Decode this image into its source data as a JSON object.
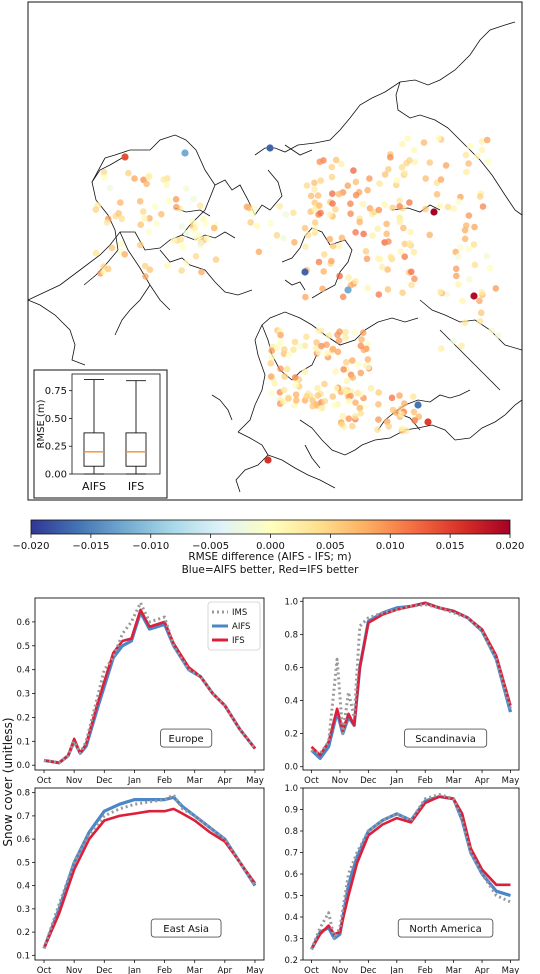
{
  "map": {
    "inset_chart": {
      "type": "box",
      "ylabel": "RMSE (m)",
      "yticks": [
        "0.00",
        "0.25",
        "0.50",
        "0.75"
      ],
      "ylim": [
        0,
        0.9
      ],
      "boxes": [
        {
          "label": "AIFS",
          "min": 0.0,
          "q1": 0.07,
          "median": 0.2,
          "q3": 0.37,
          "max": 0.85
        },
        {
          "label": "IFS",
          "min": 0.0,
          "q1": 0.07,
          "median": 0.2,
          "q3": 0.37,
          "max": 0.84
        }
      ],
      "median_color": "#f28e2b"
    },
    "colorbar": {
      "range": [
        -0.02,
        0.02
      ],
      "ticks": [
        "−0.020",
        "−0.015",
        "−0.010",
        "−0.005",
        "0.000",
        "0.005",
        "0.010",
        "0.015",
        "0.020"
      ],
      "label": "RMSE difference (AIFS - IFS; m)",
      "sublabel": "Blue=AIFS better, Red=IFS better",
      "colors": [
        "#313695",
        "#4575b4",
        "#74add1",
        "#abd9e9",
        "#e0f3f8",
        "#ffffbf",
        "#fee090",
        "#fdae61",
        "#f46d43",
        "#d73027",
        "#a50026"
      ]
    }
  },
  "chart_data": [
    {
      "type": "line",
      "region": "Europe",
      "ylabel": "Snow cover (unitless)",
      "ylim": [
        -0.02,
        0.7
      ],
      "yticks": [
        "0.0",
        "0.1",
        "0.2",
        "0.3",
        "0.4",
        "0.5",
        "0.6"
      ],
      "categories": [
        "Oct",
        "Nov",
        "Dec",
        "Jan",
        "Feb",
        "Mar",
        "Apr",
        "May"
      ],
      "series": [
        {
          "name": "IMS",
          "color": "#999999",
          "style": "dotted",
          "points": [
            [
              0,
              0.02
            ],
            [
              0.5,
              0.01
            ],
            [
              0.8,
              0.04
            ],
            [
              1.0,
              0.1
            ],
            [
              1.2,
              0.05
            ],
            [
              1.4,
              0.1
            ],
            [
              1.8,
              0.3
            ],
            [
              2.0,
              0.4
            ],
            [
              2.3,
              0.45
            ],
            [
              2.6,
              0.55
            ],
            [
              2.9,
              0.6
            ],
            [
              3.2,
              0.68
            ],
            [
              3.5,
              0.6
            ],
            [
              4.0,
              0.62
            ],
            [
              4.3,
              0.5
            ],
            [
              4.8,
              0.4
            ],
            [
              5.2,
              0.37
            ],
            [
              5.6,
              0.3
            ],
            [
              6.0,
              0.25
            ],
            [
              6.5,
              0.15
            ],
            [
              7.0,
              0.07
            ]
          ]
        },
        {
          "name": "AIFS",
          "color": "#4a86c8",
          "style": "solid",
          "points": [
            [
              0,
              0.02
            ],
            [
              0.5,
              0.01
            ],
            [
              0.8,
              0.04
            ],
            [
              1.0,
              0.1
            ],
            [
              1.2,
              0.05
            ],
            [
              1.4,
              0.08
            ],
            [
              1.8,
              0.25
            ],
            [
              2.0,
              0.33
            ],
            [
              2.3,
              0.45
            ],
            [
              2.6,
              0.5
            ],
            [
              2.9,
              0.52
            ],
            [
              3.2,
              0.64
            ],
            [
              3.5,
              0.57
            ],
            [
              4.0,
              0.59
            ],
            [
              4.3,
              0.5
            ],
            [
              4.8,
              0.4
            ],
            [
              5.2,
              0.37
            ],
            [
              5.6,
              0.3
            ],
            [
              6.0,
              0.25
            ],
            [
              6.5,
              0.15
            ],
            [
              7.0,
              0.07
            ]
          ]
        },
        {
          "name": "IFS",
          "color": "#dc1f3a",
          "style": "solid",
          "points": [
            [
              0,
              0.02
            ],
            [
              0.5,
              0.01
            ],
            [
              0.8,
              0.04
            ],
            [
              1.0,
              0.11
            ],
            [
              1.2,
              0.05
            ],
            [
              1.4,
              0.09
            ],
            [
              1.8,
              0.27
            ],
            [
              2.0,
              0.35
            ],
            [
              2.3,
              0.47
            ],
            [
              2.6,
              0.52
            ],
            [
              2.9,
              0.53
            ],
            [
              3.2,
              0.65
            ],
            [
              3.5,
              0.58
            ],
            [
              4.0,
              0.6
            ],
            [
              4.3,
              0.51
            ],
            [
              4.8,
              0.41
            ],
            [
              5.2,
              0.37
            ],
            [
              5.6,
              0.3
            ],
            [
              6.0,
              0.25
            ],
            [
              6.5,
              0.15
            ],
            [
              7.0,
              0.07
            ]
          ]
        }
      ]
    },
    {
      "type": "line",
      "region": "Scandinavia",
      "ylim": [
        -0.02,
        1.02
      ],
      "yticks": [
        "0.0",
        "0.2",
        "0.4",
        "0.6",
        "0.8",
        "1.0"
      ],
      "categories": [
        "Oct",
        "Nov",
        "Dec",
        "Jan",
        "Feb",
        "Mar",
        "Apr",
        "May"
      ],
      "series": [
        {
          "name": "IMS",
          "color": "#999999",
          "style": "dotted",
          "points": [
            [
              0,
              0.1
            ],
            [
              0.3,
              0.08
            ],
            [
              0.6,
              0.15
            ],
            [
              0.9,
              0.65
            ],
            [
              1.1,
              0.2
            ],
            [
              1.3,
              0.45
            ],
            [
              1.5,
              0.3
            ],
            [
              1.7,
              0.85
            ],
            [
              2.0,
              0.9
            ],
            [
              2.5,
              0.93
            ],
            [
              3.0,
              0.95
            ],
            [
              3.5,
              0.97
            ],
            [
              4.0,
              0.98
            ],
            [
              4.5,
              0.96
            ],
            [
              5.0,
              0.93
            ],
            [
              5.5,
              0.9
            ],
            [
              6.0,
              0.82
            ],
            [
              6.5,
              0.65
            ],
            [
              7.0,
              0.35
            ]
          ]
        },
        {
          "name": "AIFS",
          "color": "#4a86c8",
          "style": "solid",
          "points": [
            [
              0,
              0.1
            ],
            [
              0.3,
              0.05
            ],
            [
              0.6,
              0.12
            ],
            [
              0.9,
              0.33
            ],
            [
              1.1,
              0.2
            ],
            [
              1.3,
              0.3
            ],
            [
              1.5,
              0.25
            ],
            [
              1.7,
              0.6
            ],
            [
              2.0,
              0.88
            ],
            [
              2.5,
              0.93
            ],
            [
              3.0,
              0.96
            ],
            [
              3.5,
              0.97
            ],
            [
              4.0,
              0.99
            ],
            [
              4.5,
              0.96
            ],
            [
              5.0,
              0.94
            ],
            [
              5.5,
              0.9
            ],
            [
              6.0,
              0.82
            ],
            [
              6.5,
              0.65
            ],
            [
              7.0,
              0.33
            ]
          ]
        },
        {
          "name": "IFS",
          "color": "#dc1f3a",
          "style": "solid",
          "points": [
            [
              0,
              0.12
            ],
            [
              0.3,
              0.07
            ],
            [
              0.6,
              0.15
            ],
            [
              0.9,
              0.35
            ],
            [
              1.1,
              0.22
            ],
            [
              1.3,
              0.32
            ],
            [
              1.5,
              0.25
            ],
            [
              1.7,
              0.6
            ],
            [
              2.0,
              0.87
            ],
            [
              2.5,
              0.92
            ],
            [
              3.0,
              0.95
            ],
            [
              3.5,
              0.97
            ],
            [
              4.0,
              0.99
            ],
            [
              4.5,
              0.96
            ],
            [
              5.0,
              0.94
            ],
            [
              5.5,
              0.9
            ],
            [
              6.0,
              0.83
            ],
            [
              6.5,
              0.67
            ],
            [
              7.0,
              0.37
            ]
          ]
        }
      ]
    },
    {
      "type": "line",
      "region": "East Asia",
      "ylim": [
        0.08,
        0.82
      ],
      "yticks": [
        "0.1",
        "0.2",
        "0.3",
        "0.4",
        "0.5",
        "0.6",
        "0.7",
        "0.8"
      ],
      "categories": [
        "Oct",
        "Nov",
        "Dec",
        "Jan",
        "Feb",
        "Mar",
        "Apr",
        "May"
      ],
      "series": [
        {
          "name": "IMS",
          "color": "#999999",
          "style": "dotted",
          "points": [
            [
              0,
              0.13
            ],
            [
              0.5,
              0.32
            ],
            [
              1.0,
              0.5
            ],
            [
              1.5,
              0.62
            ],
            [
              2.0,
              0.7
            ],
            [
              2.5,
              0.73
            ],
            [
              3.0,
              0.75
            ],
            [
              3.5,
              0.76
            ],
            [
              4.0,
              0.77
            ],
            [
              4.3,
              0.79
            ],
            [
              4.6,
              0.73
            ],
            [
              5.0,
              0.7
            ],
            [
              5.5,
              0.65
            ],
            [
              6.0,
              0.6
            ],
            [
              6.5,
              0.5
            ],
            [
              7.0,
              0.4
            ]
          ]
        },
        {
          "name": "AIFS",
          "color": "#4a86c8",
          "style": "solid",
          "points": [
            [
              0,
              0.13
            ],
            [
              0.5,
              0.3
            ],
            [
              1.0,
              0.5
            ],
            [
              1.5,
              0.63
            ],
            [
              2.0,
              0.72
            ],
            [
              2.5,
              0.75
            ],
            [
              3.0,
              0.77
            ],
            [
              3.5,
              0.77
            ],
            [
              4.0,
              0.77
            ],
            [
              4.3,
              0.78
            ],
            [
              4.6,
              0.74
            ],
            [
              5.0,
              0.7
            ],
            [
              5.5,
              0.65
            ],
            [
              6.0,
              0.6
            ],
            [
              6.5,
              0.5
            ],
            [
              7.0,
              0.4
            ]
          ]
        },
        {
          "name": "IFS",
          "color": "#dc1f3a",
          "style": "solid",
          "points": [
            [
              0,
              0.13
            ],
            [
              0.5,
              0.28
            ],
            [
              1.0,
              0.47
            ],
            [
              1.5,
              0.6
            ],
            [
              2.0,
              0.68
            ],
            [
              2.5,
              0.7
            ],
            [
              3.0,
              0.71
            ],
            [
              3.5,
              0.72
            ],
            [
              4.0,
              0.72
            ],
            [
              4.3,
              0.73
            ],
            [
              4.6,
              0.71
            ],
            [
              5.0,
              0.68
            ],
            [
              5.5,
              0.63
            ],
            [
              6.0,
              0.59
            ],
            [
              6.5,
              0.5
            ],
            [
              7.0,
              0.41
            ]
          ]
        }
      ]
    },
    {
      "type": "line",
      "region": "North America",
      "ylim": [
        0.2,
        1.0
      ],
      "yticks": [
        "0.2",
        "0.3",
        "0.4",
        "0.5",
        "0.6",
        "0.7",
        "0.8",
        "0.9",
        "1.0"
      ],
      "categories": [
        "Oct",
        "Nov",
        "Dec",
        "Jan",
        "Feb",
        "Mar",
        "Apr",
        "May"
      ],
      "series": [
        {
          "name": "IMS",
          "color": "#999999",
          "style": "dotted",
          "points": [
            [
              0,
              0.25
            ],
            [
              0.3,
              0.35
            ],
            [
              0.6,
              0.42
            ],
            [
              0.8,
              0.3
            ],
            [
              1.0,
              0.35
            ],
            [
              1.3,
              0.6
            ],
            [
              1.6,
              0.7
            ],
            [
              2.0,
              0.8
            ],
            [
              2.5,
              0.85
            ],
            [
              3.0,
              0.88
            ],
            [
              3.5,
              0.85
            ],
            [
              4.0,
              0.95
            ],
            [
              4.5,
              0.97
            ],
            [
              5.0,
              0.95
            ],
            [
              5.3,
              0.85
            ],
            [
              5.6,
              0.7
            ],
            [
              6.0,
              0.6
            ],
            [
              6.5,
              0.5
            ],
            [
              7.0,
              0.47
            ]
          ]
        },
        {
          "name": "AIFS",
          "color": "#4a86c8",
          "style": "solid",
          "points": [
            [
              0,
              0.25
            ],
            [
              0.3,
              0.33
            ],
            [
              0.6,
              0.35
            ],
            [
              0.8,
              0.3
            ],
            [
              1.0,
              0.32
            ],
            [
              1.3,
              0.55
            ],
            [
              1.6,
              0.68
            ],
            [
              2.0,
              0.8
            ],
            [
              2.5,
              0.85
            ],
            [
              3.0,
              0.88
            ],
            [
              3.5,
              0.85
            ],
            [
              4.0,
              0.94
            ],
            [
              4.5,
              0.96
            ],
            [
              5.0,
              0.95
            ],
            [
              5.3,
              0.85
            ],
            [
              5.6,
              0.7
            ],
            [
              6.0,
              0.6
            ],
            [
              6.5,
              0.52
            ],
            [
              7.0,
              0.5
            ]
          ]
        },
        {
          "name": "IFS",
          "color": "#dc1f3a",
          "style": "solid",
          "points": [
            [
              0,
              0.25
            ],
            [
              0.3,
              0.32
            ],
            [
              0.6,
              0.36
            ],
            [
              0.8,
              0.32
            ],
            [
              1.0,
              0.33
            ],
            [
              1.3,
              0.5
            ],
            [
              1.6,
              0.65
            ],
            [
              2.0,
              0.78
            ],
            [
              2.5,
              0.83
            ],
            [
              3.0,
              0.86
            ],
            [
              3.5,
              0.84
            ],
            [
              4.0,
              0.93
            ],
            [
              4.5,
              0.96
            ],
            [
              5.0,
              0.95
            ],
            [
              5.3,
              0.88
            ],
            [
              5.6,
              0.72
            ],
            [
              6.0,
              0.62
            ],
            [
              6.5,
              0.55
            ],
            [
              7.0,
              0.55
            ]
          ]
        }
      ]
    }
  ]
}
